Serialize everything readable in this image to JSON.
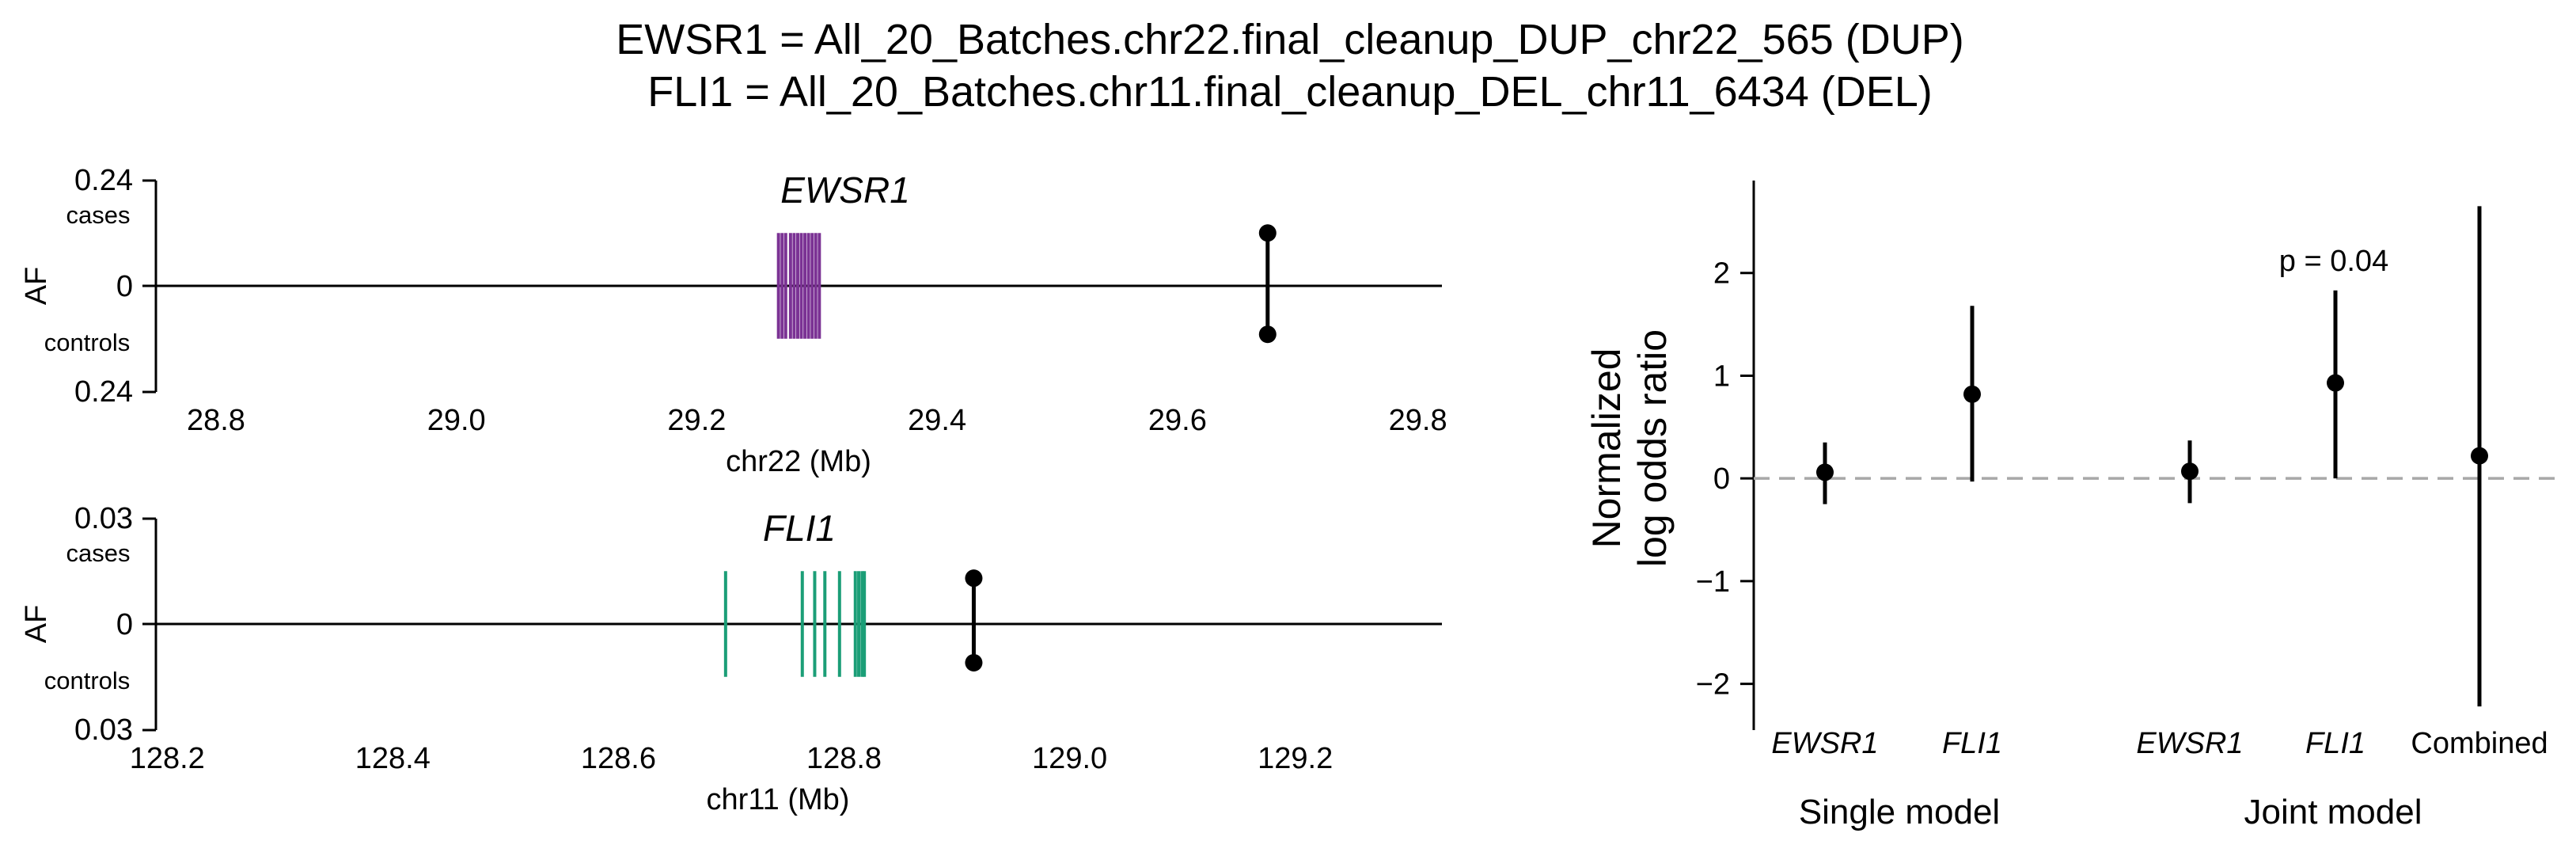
{
  "titles": [
    "EWSR1 = All_20_Batches.chr22.final_cleanup_DUP_chr22_565 (DUP)",
    "FLI1 = All_20_Batches.chr11.final_cleanup_DEL_chr11_6434 (DEL)"
  ],
  "chart_data": [
    {
      "type": "scatter",
      "panel": "EWSR1 locus",
      "gene_label": "EWSR1",
      "ylabel": "AF",
      "y_top_label": "cases",
      "y_bottom_label": "controls",
      "yticks": [
        "0.24",
        "0",
        "0.24"
      ],
      "ylim": [
        -0.24,
        0.24
      ],
      "xlabel": "chr22 (Mb)",
      "xticks": [
        28.8,
        29.0,
        29.2,
        29.4,
        29.6,
        29.8
      ],
      "xtick_labels": [
        "28.8",
        "29.0",
        "29.2",
        "29.4",
        "29.6",
        "29.8"
      ],
      "xlim": [
        28.75,
        29.82
      ],
      "gene_color": "#7B3294",
      "exons_mb": [
        29.268,
        29.271,
        29.274,
        29.278,
        29.281,
        29.284,
        29.287,
        29.29,
        29.293,
        29.296,
        29.299,
        29.302
      ],
      "exon_half_height": 0.12,
      "variant": {
        "position_mb": 29.675,
        "af_cases": 0.12,
        "af_controls": 0.11
      }
    },
    {
      "type": "scatter",
      "panel": "FLI1 locus",
      "gene_label": "FLI1",
      "ylabel": "AF",
      "y_top_label": "cases",
      "y_bottom_label": "controls",
      "yticks": [
        "0.03",
        "0",
        "0.03"
      ],
      "ylim": [
        -0.03,
        0.03
      ],
      "xlabel": "chr11 (Mb)",
      "xticks": [
        128.2,
        128.4,
        128.6,
        128.8,
        129.0,
        129.2
      ],
      "xtick_labels": [
        "128.2",
        "128.4",
        "128.6",
        "128.8",
        "129.0",
        "129.2"
      ],
      "xlim": [
        128.19,
        129.33
      ],
      "gene_color": "#1B9E77",
      "exons_mb": [
        128.695,
        128.763,
        128.774,
        128.783,
        128.796,
        128.81,
        128.813,
        128.816,
        128.818
      ],
      "exon_half_height": 0.015,
      "variant": {
        "position_mb": 128.915,
        "af_cases": 0.013,
        "af_controls": 0.011
      }
    },
    {
      "type": "scatter",
      "panel": "effect sizes",
      "ylabel_lines": [
        "Normalized",
        "log odds ratio"
      ],
      "yticks": [
        2,
        1,
        0,
        -1,
        -2
      ],
      "ylim": [
        -2.45,
        2.9
      ],
      "reference_line_y": 0,
      "points": [
        {
          "label": "EWSR1",
          "italic": true,
          "group": "Single model",
          "estimate": 0.06,
          "ci_low": -0.25,
          "ci_high": 0.35
        },
        {
          "label": "FLI1",
          "italic": true,
          "group": "Single model",
          "estimate": 0.82,
          "ci_low": -0.03,
          "ci_high": 1.68
        },
        {
          "label": "EWSR1",
          "italic": true,
          "group": "Joint model",
          "estimate": 0.07,
          "ci_low": -0.24,
          "ci_high": 0.37
        },
        {
          "label": "FLI1",
          "italic": true,
          "group": "Joint model",
          "estimate": 0.93,
          "ci_low": 0.0,
          "ci_high": 1.83
        },
        {
          "label": "Combined",
          "italic": false,
          "group": "Joint model",
          "estimate": 0.22,
          "ci_low": -2.22,
          "ci_high": 2.65
        }
      ],
      "annotation": "p = 0.04",
      "groups": [
        "Single model",
        "Joint model"
      ]
    }
  ],
  "colors": {
    "reference_line": "#A8A8A8",
    "points": "#000000"
  }
}
